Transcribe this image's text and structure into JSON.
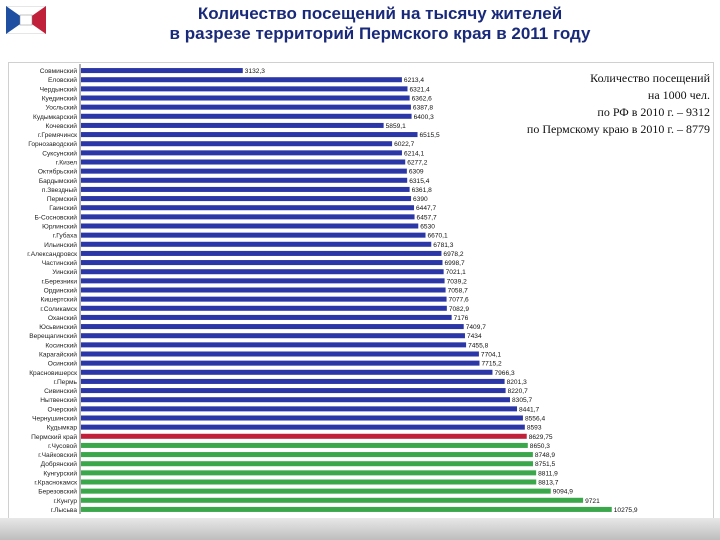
{
  "header": {
    "title_line1": "Количество посещений на тысячу жителей",
    "title_line2": "в разрезе территорий Пермского края в 2011 году"
  },
  "info": {
    "line1": "Количество посещений",
    "line2": "на 1000 чел.",
    "line3": "по РФ в 2010 г. – 9312",
    "line4": "по Пермскому краю в 2010 г. – 8779"
  },
  "colors": {
    "blue": "#2b37a6",
    "red": "#c0203a",
    "green": "#3aa84a"
  },
  "chart_data": {
    "type": "bar",
    "orientation": "horizontal",
    "xlim": [
      0,
      10500
    ],
    "categories": [
      "Совминский",
      "Еловский",
      "Чердынский",
      "Куединский",
      "Уосльский",
      "Кудымкарский",
      "Кочевский",
      "г.Гремячинск",
      "Горнозаводский",
      "Суксунский",
      "г.Кизел",
      "Октябрьский",
      "Бардымский",
      "п.Звездный",
      "Пермский",
      "Гаинский",
      "Б-Сосновский",
      "Юрлинский",
      "г.Губаха",
      "Ильинский",
      "г.Александровск",
      "Частинский",
      "Уинский",
      "г.Березники",
      "Ординский",
      "Кишертский",
      "г.Соликамск",
      "Оханский",
      "Юсьвинский",
      "Верещагинский",
      "Косинский",
      "Карагайский",
      "Осинский",
      "Красновишерск",
      "г.Пермь",
      "Сивинский",
      "Нытвенский",
      "Очерский",
      "Чернушинский",
      "Кудымкар",
      "Пермский край",
      "г.Чусовой",
      "г.Чайковский",
      "Добрянский",
      "Кунгурский",
      "г.Краснокамск",
      "Березовский",
      "г.Кунгур",
      "г.Лысьва"
    ],
    "values": [
      3132.3,
      6213.4,
      6321.4,
      6362.6,
      6387.8,
      6400.3,
      5859.1,
      6515.5,
      6022.7,
      6214.1,
      6277.2,
      6309,
      6315.4,
      6361.8,
      6390,
      6447.7,
      6457.7,
      6530,
      6670.1,
      6781.3,
      6978.2,
      6998.7,
      7021.1,
      7039.2,
      7058.7,
      7077.6,
      7082.9,
      7176,
      7409.7,
      7434,
      7455.8,
      7704.1,
      7715.2,
      7966.3,
      8201.3,
      8220.7,
      8305.7,
      8441.7,
      8556.4,
      8593,
      8629.75,
      8650.3,
      8748.9,
      8751.5,
      8811.9,
      8813.7,
      9094.9,
      9721,
      10275.9
    ],
    "labels": [
      "3132,3",
      "6213,4",
      "6321,4",
      "6362,6",
      "6387,8",
      "6400,3",
      "5859,1",
      "6515,5",
      "6022,7",
      "6214,1",
      "6277,2",
      "6309",
      "6315,4",
      "6361,8",
      "6390",
      "6447,7",
      "6457,7",
      "6530",
      "6670,1",
      "6781,3",
      "6978,2",
      "6998,7",
      "7021,1",
      "7039,2",
      "7058,7",
      "7077,6",
      "7082,9",
      "7176",
      "7409,7",
      "7434",
      "7455,8",
      "7704,1",
      "7715,2",
      "7966,3",
      "8201,3",
      "8220,7",
      "8305,7",
      "8441,7",
      "8556,4",
      "8593",
      "8629,75",
      "8650,3",
      "8748,9",
      "8751,5",
      "8811,9",
      "8813,7",
      "9094,9",
      "9721",
      "10275,9"
    ],
    "highlight": {
      "Пермский край": "red"
    },
    "green_from_index": 41
  }
}
